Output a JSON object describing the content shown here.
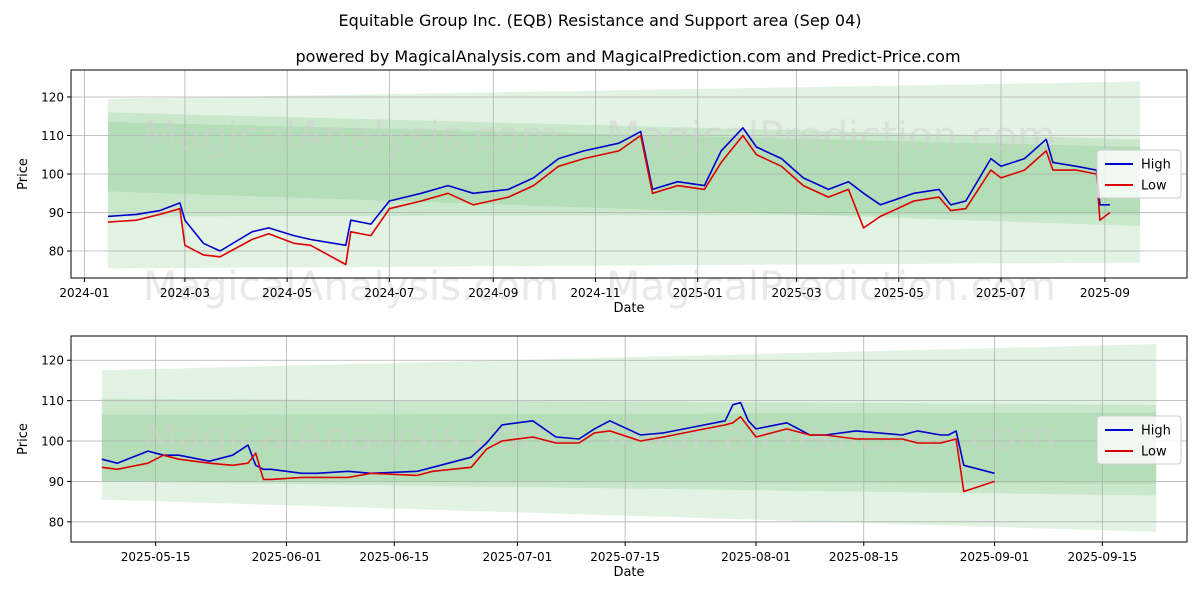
{
  "title": "Equitable Group Inc. (EQB) Resistance and Support area (Sep 04)",
  "subtitle": "powered by MagicalAnalysis.com and MagicalPrediction.com and Predict-Price.com",
  "watermarks": [
    "MagicalAnalysis.com",
    "MagicalPrediction.com"
  ],
  "colors": {
    "high": "#0000cc",
    "low": "#dd0000",
    "band": "#4caf50",
    "grid": "#b0b0b0"
  },
  "chart_data": [
    {
      "type": "line",
      "xlabel": "Date",
      "ylabel": "Price",
      "grid": true,
      "legend": "right",
      "xlim": [
        "2023-12-24",
        "2025-10-20"
      ],
      "ylim": [
        73,
        127
      ],
      "xticks": [
        "2024-01-01",
        "2024-03-01",
        "2024-05-01",
        "2024-07-01",
        "2024-09-01",
        "2024-11-01",
        "2025-01-01",
        "2025-03-01",
        "2025-05-01",
        "2025-07-01",
        "2025-09-01"
      ],
      "xtick_labels": [
        "2024-01",
        "2024-03",
        "2024-05",
        "2024-07",
        "2024-09",
        "2024-11",
        "2025-01",
        "2025-03",
        "2025-05",
        "2025-07",
        "2025-09"
      ],
      "yticks": [
        80,
        90,
        100,
        110,
        120
      ],
      "bands": [
        {
          "x": [
            "2024-01-15",
            "2025-09-22"
          ],
          "upper": [
            119.5,
            124
          ],
          "lower": [
            75.5,
            77
          ]
        },
        {
          "x": [
            "2024-01-15",
            "2025-09-22"
          ],
          "upper": [
            116,
            109
          ],
          "lower": [
            95.5,
            86.5
          ]
        },
        {
          "x": [
            "2024-01-15",
            "2025-09-22"
          ],
          "upper": [
            113.5,
            107
          ],
          "lower": [
            89,
            89.5
          ]
        }
      ],
      "series": [
        {
          "name": "High",
          "x": [
            "2024-01-15",
            "2024-02-01",
            "2024-02-15",
            "2024-02-27",
            "2024-03-01",
            "2024-03-12",
            "2024-03-22",
            "2024-04-10",
            "2024-04-20",
            "2024-05-05",
            "2024-05-15",
            "2024-06-05",
            "2024-06-08",
            "2024-06-20",
            "2024-07-01",
            "2024-07-20",
            "2024-08-05",
            "2024-08-20",
            "2024-09-10",
            "2024-09-25",
            "2024-10-10",
            "2024-10-25",
            "2024-11-15",
            "2024-11-28",
            "2024-12-05",
            "2024-12-20",
            "2025-01-05",
            "2025-01-15",
            "2025-01-28",
            "2025-02-05",
            "2025-02-20",
            "2025-03-05",
            "2025-03-20",
            "2025-04-01",
            "2025-04-10",
            "2025-04-20",
            "2025-05-10",
            "2025-05-25",
            "2025-06-01",
            "2025-06-10",
            "2025-06-25",
            "2025-07-01",
            "2025-07-15",
            "2025-07-28",
            "2025-08-01",
            "2025-08-15",
            "2025-08-27",
            "2025-08-29",
            "2025-09-04"
          ],
          "values": [
            89,
            89.5,
            90.5,
            92.5,
            88,
            82,
            80,
            85,
            86,
            84,
            83,
            81.5,
            88,
            87,
            93,
            95,
            97,
            95,
            96,
            99,
            104,
            106,
            108,
            111,
            96,
            98,
            97,
            106,
            112,
            107,
            104,
            99,
            96,
            98,
            95,
            92,
            95,
            96,
            92,
            93,
            104,
            102,
            104,
            109,
            103,
            102,
            101,
            92,
            92
          ]
        },
        {
          "name": "Low",
          "x": [
            "2024-01-15",
            "2024-02-01",
            "2024-02-15",
            "2024-02-27",
            "2024-03-01",
            "2024-03-12",
            "2024-03-22",
            "2024-04-10",
            "2024-04-20",
            "2024-05-05",
            "2024-05-15",
            "2024-06-05",
            "2024-06-08",
            "2024-06-20",
            "2024-07-01",
            "2024-07-20",
            "2024-08-05",
            "2024-08-20",
            "2024-09-10",
            "2024-09-25",
            "2024-10-10",
            "2024-10-25",
            "2024-11-15",
            "2024-11-28",
            "2024-12-05",
            "2024-12-20",
            "2025-01-05",
            "2025-01-15",
            "2025-01-28",
            "2025-02-05",
            "2025-02-20",
            "2025-03-05",
            "2025-03-20",
            "2025-04-01",
            "2025-04-10",
            "2025-04-20",
            "2025-05-10",
            "2025-05-25",
            "2025-06-01",
            "2025-06-10",
            "2025-06-25",
            "2025-07-01",
            "2025-07-15",
            "2025-07-28",
            "2025-08-01",
            "2025-08-15",
            "2025-08-27",
            "2025-08-29",
            "2025-09-04"
          ],
          "values": [
            87.5,
            88,
            89.5,
            91,
            81.5,
            79,
            78.5,
            83,
            84.5,
            82,
            81.5,
            76.5,
            85,
            84,
            91,
            93,
            95,
            92,
            94,
            97,
            102,
            104,
            106,
            110,
            95,
            97,
            96,
            103,
            110,
            105,
            102,
            97,
            94,
            96,
            86,
            89,
            93,
            94,
            90.5,
            91,
            101,
            99,
            101,
            106,
            101,
            101,
            100,
            88,
            90
          ]
        }
      ]
    },
    {
      "type": "line",
      "xlabel": "Date",
      "ylabel": "Price",
      "grid": true,
      "legend": "right",
      "xlim": [
        "2025-05-04",
        "2025-09-26"
      ],
      "ylim": [
        75,
        126
      ],
      "xticks": [
        "2025-05-15",
        "2025-06-01",
        "2025-06-15",
        "2025-07-01",
        "2025-07-15",
        "2025-08-01",
        "2025-08-15",
        "2025-09-01",
        "2025-09-15"
      ],
      "xtick_labels": [
        "2025-05-15",
        "2025-06-01",
        "2025-06-15",
        "2025-07-01",
        "2025-07-15",
        "2025-08-01",
        "2025-08-15",
        "2025-09-01",
        "2025-09-15"
      ],
      "yticks": [
        80,
        90,
        100,
        110,
        120
      ],
      "bands": [
        {
          "x": [
            "2025-05-08",
            "2025-09-22"
          ],
          "upper": [
            117.5,
            124
          ],
          "lower": [
            85.5,
            77.5
          ]
        },
        {
          "x": [
            "2025-05-08",
            "2025-09-22"
          ],
          "upper": [
            110.5,
            109
          ],
          "lower": [
            90,
            86.5
          ]
        },
        {
          "x": [
            "2025-05-08",
            "2025-09-22"
          ],
          "upper": [
            106.5,
            107
          ],
          "lower": [
            90,
            89.5
          ]
        }
      ],
      "series": [
        {
          "name": "High",
          "x": [
            "2025-05-08",
            "2025-05-10",
            "2025-05-14",
            "2025-05-16",
            "2025-05-18",
            "2025-05-22",
            "2025-05-25",
            "2025-05-27",
            "2025-05-28",
            "2025-05-29",
            "2025-05-30",
            "2025-06-03",
            "2025-06-05",
            "2025-06-09",
            "2025-06-12",
            "2025-06-18",
            "2025-06-20",
            "2025-06-25",
            "2025-06-27",
            "2025-06-29",
            "2025-07-03",
            "2025-07-06",
            "2025-07-09",
            "2025-07-11",
            "2025-07-13",
            "2025-07-17",
            "2025-07-20",
            "2025-07-24",
            "2025-07-28",
            "2025-07-29",
            "2025-07-30",
            "2025-07-31",
            "2025-08-01",
            "2025-08-05",
            "2025-08-08",
            "2025-08-10",
            "2025-08-14",
            "2025-08-20",
            "2025-08-22",
            "2025-08-25",
            "2025-08-26",
            "2025-08-27",
            "2025-08-28",
            "2025-09-01"
          ],
          "values": [
            95.5,
            94.5,
            97.5,
            96.5,
            96.5,
            95,
            96.5,
            99,
            94,
            93,
            93,
            92,
            92,
            92.5,
            92,
            92.5,
            93.5,
            96,
            99.5,
            104,
            105,
            101,
            100.5,
            103,
            105,
            101.5,
            102,
            103.5,
            105,
            109,
            109.5,
            105,
            103,
            104.5,
            101.5,
            101.5,
            102.5,
            101.5,
            102.5,
            101.5,
            101.5,
            102.5,
            94,
            92
          ]
        },
        {
          "name": "Low",
          "x": [
            "2025-05-08",
            "2025-05-10",
            "2025-05-14",
            "2025-05-16",
            "2025-05-18",
            "2025-05-22",
            "2025-05-25",
            "2025-05-27",
            "2025-05-28",
            "2025-05-29",
            "2025-05-30",
            "2025-06-03",
            "2025-06-05",
            "2025-06-09",
            "2025-06-12",
            "2025-06-18",
            "2025-06-20",
            "2025-06-25",
            "2025-06-27",
            "2025-06-29",
            "2025-07-03",
            "2025-07-06",
            "2025-07-09",
            "2025-07-11",
            "2025-07-13",
            "2025-07-17",
            "2025-07-20",
            "2025-07-24",
            "2025-07-28",
            "2025-07-29",
            "2025-07-30",
            "2025-07-31",
            "2025-08-01",
            "2025-08-05",
            "2025-08-08",
            "2025-08-10",
            "2025-08-14",
            "2025-08-20",
            "2025-08-22",
            "2025-08-25",
            "2025-08-26",
            "2025-08-27",
            "2025-08-28",
            "2025-09-01"
          ],
          "values": [
            93.5,
            93,
            94.5,
            96.5,
            95.5,
            94.5,
            94,
            94.5,
            97,
            90.5,
            90.5,
            91,
            91,
            91,
            92,
            91.5,
            92.5,
            93.5,
            98,
            100,
            101,
            99.5,
            99.5,
            102,
            102.5,
            100,
            101,
            102.5,
            104,
            104.5,
            106,
            103.5,
            101,
            103,
            101.5,
            101.5,
            100.5,
            100.5,
            99.5,
            99.5,
            100,
            100.5,
            87.5,
            90
          ]
        }
      ]
    }
  ]
}
